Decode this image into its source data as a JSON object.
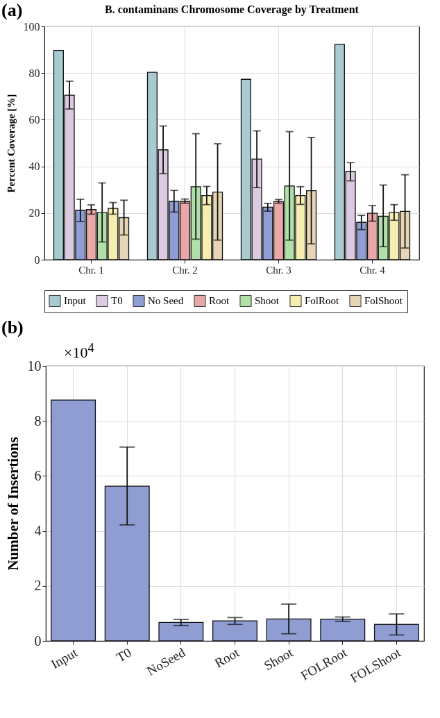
{
  "chart_data": [
    {
      "type": "bar",
      "title": "B. contaminans Chromosome Coverage by Treatment",
      "ylabel": "Percent Coverage [%]",
      "annotations": [
        "(a)"
      ],
      "categories": [
        "Chr. 1",
        "Chr. 2",
        "Chr. 3",
        "Chr. 4"
      ],
      "series": [
        {
          "name": "Input",
          "color": "#a9cad0",
          "values": [
            89.7,
            80.3,
            77.3,
            92.3
          ]
        },
        {
          "name": "T0",
          "color": "#dccbe0",
          "values": [
            70.5,
            47.1,
            43.1,
            37.8
          ],
          "errors": [
            [
              64.6,
              76.5
            ],
            [
              36.9,
              57.3
            ],
            [
              30.9,
              55.2
            ],
            [
              33.8,
              41.6
            ]
          ]
        },
        {
          "name": "No Seed",
          "color": "#8f9dd2",
          "values": [
            21.2,
            25,
            22.5,
            16
          ],
          "errors": [
            [
              16.4,
              25.9
            ],
            [
              20.4,
              29.7
            ],
            [
              20.8,
              24.1
            ],
            [
              12.9,
              19
            ]
          ]
        },
        {
          "name": "Root",
          "color": "#e8a8a8",
          "values": [
            21.5,
            25,
            24.9,
            19.9
          ],
          "errors": [
            [
              19.5,
              23.5
            ],
            [
              24.2,
              26
            ],
            [
              24.2,
              25.8
            ],
            [
              16.5,
              23.2
            ]
          ]
        },
        {
          "name": "Shoot",
          "color": "#b0e0a8",
          "values": [
            20.2,
            31.3,
            31.6,
            18.6
          ],
          "errors": [
            [
              7.6,
              32.9
            ],
            [
              8.8,
              54
            ],
            [
              8.4,
              54.9
            ],
            [
              5.6,
              32
            ]
          ]
        },
        {
          "name": "FolRoot",
          "color": "#f6eeb0",
          "values": [
            22,
            27.5,
            27.5,
            20.2
          ],
          "errors": [
            [
              19.5,
              24.5
            ],
            [
              23.6,
              31.4
            ],
            [
              23.7,
              31.3
            ],
            [
              16.9,
              23.6
            ]
          ]
        },
        {
          "name": "FolShoot",
          "color": "#e6d6b6",
          "values": [
            18,
            29,
            29.6,
            20.7
          ],
          "errors": [
            [
              10.6,
              25.5
            ],
            [
              8.4,
              49.7
            ],
            [
              6.8,
              52.4
            ],
            [
              5,
              36.4
            ]
          ]
        }
      ],
      "ylim": [
        0,
        100
      ],
      "yticks": [
        0,
        20,
        40,
        60,
        80,
        100
      ],
      "grid": true,
      "legend": "bottom"
    },
    {
      "type": "bar",
      "ylabel": "Number of Insertions",
      "annotations": [
        "(b)",
        "×10$^{4}$"
      ],
      "categories": [
        "Input",
        "T0",
        "NoSeed",
        "Root",
        "Shoot",
        "FOLRoot",
        "FOLShoot"
      ],
      "values": [
        8.76,
        5.63,
        0.67,
        0.73,
        0.8,
        0.79,
        0.6
      ],
      "errors": [
        null,
        [
          4.22,
          7.05
        ],
        [
          0.56,
          0.78
        ],
        [
          0.6,
          0.85
        ],
        [
          0.26,
          1.34
        ],
        [
          0.71,
          0.87
        ],
        [
          0.22,
          0.98
        ]
      ],
      "color": "#8f9dd2",
      "ylim": [
        0,
        10
      ],
      "yticks": [
        0,
        2,
        4,
        6,
        8,
        10
      ],
      "grid": true
    }
  ]
}
